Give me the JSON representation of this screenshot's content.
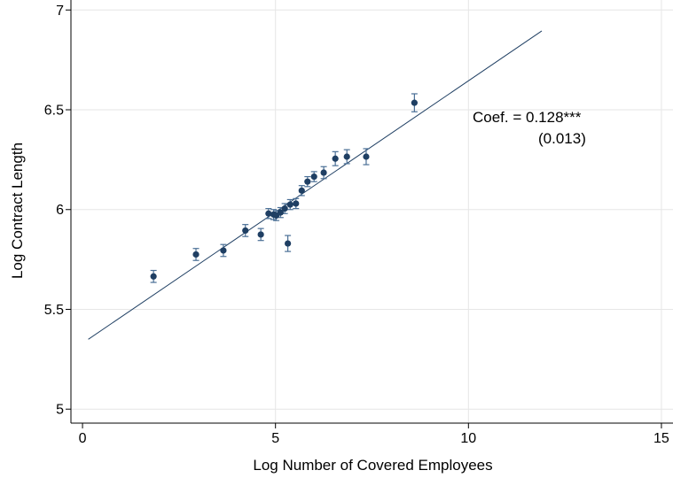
{
  "chart_data": {
    "type": "scatter",
    "title": "",
    "xlabel": "Log Number of Covered Employees",
    "ylabel": "Log Contract Length",
    "xlim": [
      -0.3,
      15.3
    ],
    "ylim": [
      4.93,
      7.05
    ],
    "xticks": [
      0,
      5,
      10,
      15
    ],
    "yticks": [
      5,
      5.5,
      6,
      6.5,
      7
    ],
    "xtick_labels": [
      "0",
      "5",
      "10",
      "15"
    ],
    "ytick_labels": [
      "5",
      "5.5",
      "6",
      "6.5",
      "7"
    ],
    "grid": true,
    "legend": "none",
    "colors": {
      "marker": "#1f3f63",
      "errorbar": "#4a6f96",
      "fit_line": "#1f3f63",
      "grid": "#e6e6e6"
    },
    "points": [
      {
        "x": 1.84,
        "y": 5.665,
        "lo": 5.635,
        "hi": 5.695
      },
      {
        "x": 2.94,
        "y": 5.775,
        "lo": 5.745,
        "hi": 5.805
      },
      {
        "x": 3.65,
        "y": 5.795,
        "lo": 5.765,
        "hi": 5.825
      },
      {
        "x": 4.22,
        "y": 5.895,
        "lo": 5.865,
        "hi": 5.925
      },
      {
        "x": 4.62,
        "y": 5.875,
        "lo": 5.845,
        "hi": 5.905
      },
      {
        "x": 4.82,
        "y": 5.98,
        "lo": 5.955,
        "hi": 6.005
      },
      {
        "x": 4.95,
        "y": 5.975,
        "lo": 5.95,
        "hi": 6.0
      },
      {
        "x": 5.02,
        "y": 5.97,
        "lo": 5.945,
        "hi": 5.995
      },
      {
        "x": 5.13,
        "y": 5.985,
        "lo": 5.96,
        "hi": 6.01
      },
      {
        "x": 5.24,
        "y": 6.005,
        "lo": 5.98,
        "hi": 6.03
      },
      {
        "x": 5.32,
        "y": 5.83,
        "lo": 5.79,
        "hi": 5.87
      },
      {
        "x": 5.38,
        "y": 6.025,
        "lo": 6.0,
        "hi": 6.05
      },
      {
        "x": 5.53,
        "y": 6.03,
        "lo": 6.005,
        "hi": 6.055
      },
      {
        "x": 5.68,
        "y": 6.095,
        "lo": 6.07,
        "hi": 6.12
      },
      {
        "x": 5.83,
        "y": 6.14,
        "lo": 6.115,
        "hi": 6.165
      },
      {
        "x": 6.0,
        "y": 6.165,
        "lo": 6.14,
        "hi": 6.19
      },
      {
        "x": 6.25,
        "y": 6.185,
        "lo": 6.155,
        "hi": 6.215
      },
      {
        "x": 6.55,
        "y": 6.255,
        "lo": 6.22,
        "hi": 6.29
      },
      {
        "x": 6.85,
        "y": 6.265,
        "lo": 6.23,
        "hi": 6.3
      },
      {
        "x": 7.35,
        "y": 6.265,
        "lo": 6.225,
        "hi": 6.305
      },
      {
        "x": 8.6,
        "y": 6.535,
        "lo": 6.49,
        "hi": 6.58
      }
    ],
    "fit_line": {
      "x": [
        0.15,
        11.9
      ],
      "y": [
        5.35,
        6.895
      ]
    },
    "annotations": {
      "coef": "Coef. = 0.128***",
      "se": "(0.013)"
    }
  }
}
